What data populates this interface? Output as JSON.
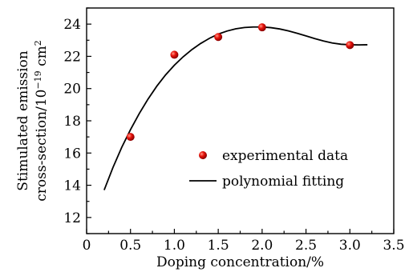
{
  "chart_data": {
    "type": "scatter",
    "xlabel": "Doping concentration/%",
    "ylabel_line1": "Stimulated emission",
    "ylabel_line2_prefix": "cross-section/10",
    "ylabel_line2_exp": "−19",
    "ylabel_line2_unit": " cm",
    "ylabel_line2_unit_exp": "2",
    "xlim": [
      0,
      3.5
    ],
    "ylim": [
      11,
      25
    ],
    "xticks": [
      0,
      0.5,
      1.0,
      1.5,
      2.0,
      2.5,
      3.0,
      3.5
    ],
    "xtick_labels": [
      "0",
      "0.5",
      "1.0",
      "1.5",
      "2.0",
      "2.5",
      "3.0",
      "3.5"
    ],
    "yticks": [
      12,
      14,
      16,
      18,
      20,
      22,
      24
    ],
    "ytick_labels": [
      "12",
      "14",
      "16",
      "18",
      "20",
      "22",
      "24"
    ],
    "grid": false,
    "legend_position": "right",
    "series": [
      {
        "name": "experimental data",
        "kind": "scatter",
        "color": "#e8140c",
        "x": [
          0.5,
          1.0,
          1.5,
          2.0,
          3.0
        ],
        "y": [
          17.0,
          22.1,
          23.2,
          23.8,
          22.7
        ]
      },
      {
        "name": "polynomial fitting",
        "kind": "line",
        "color": "#000000",
        "x": [
          0.2,
          0.3,
          0.4,
          0.5,
          0.6,
          0.7,
          0.8,
          0.9,
          1.0,
          1.1,
          1.2,
          1.3,
          1.4,
          1.5,
          1.6,
          1.7,
          1.8,
          1.9,
          2.0,
          2.1,
          2.2,
          2.3,
          2.4,
          2.5,
          2.6,
          2.7,
          2.8,
          2.9,
          3.0,
          3.1,
          3.2
        ],
        "y": [
          13.7,
          15.1,
          16.35,
          17.45,
          18.45,
          19.35,
          20.15,
          20.85,
          21.45,
          21.97,
          22.42,
          22.8,
          23.12,
          23.38,
          23.57,
          23.71,
          23.79,
          23.82,
          23.82,
          23.78,
          23.7,
          23.58,
          23.43,
          23.27,
          23.1,
          22.95,
          22.83,
          22.75,
          22.72,
          22.71,
          22.72
        ]
      }
    ]
  }
}
